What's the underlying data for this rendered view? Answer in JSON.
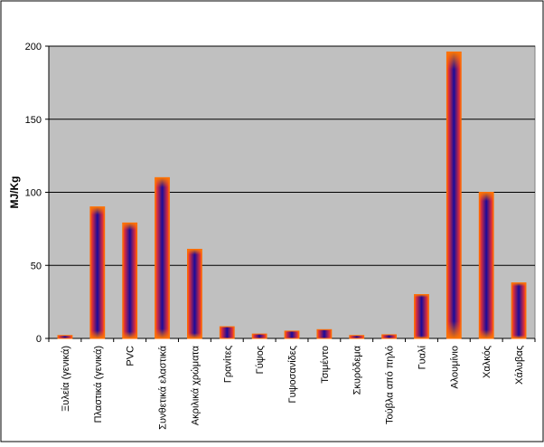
{
  "chart_data": {
    "type": "bar",
    "title": "",
    "xlabel": "",
    "ylabel": "MJ/Kg",
    "ylim": [
      0,
      200
    ],
    "yticks": [
      0,
      50,
      100,
      150,
      200
    ],
    "grid": true,
    "legend": "none",
    "categories": [
      "Ξυλεία (γενικά)",
      "Πλαστικά (γενικά)",
      "PVC",
      "Συνθετικά ελαστικά",
      "Ακριλικά χρώματα",
      "Γρανίτες",
      "Γύψος",
      "Γυψοσανίδες",
      "Τσιμέντο",
      "Σκυρόδεμα",
      "Τούβλα από πηλό",
      "Γυαλί",
      "Αλουμίνιο",
      "Χαλκός",
      "Χάλυβας"
    ],
    "values": [
      2,
      90,
      79,
      110,
      61,
      8,
      3,
      5,
      6,
      2,
      2.5,
      30,
      196,
      100,
      38
    ],
    "colors": {
      "plot_background": "#c0c0c0",
      "bar_edge": "#ff6600",
      "bar_center": "#1a0a9a",
      "gridline": "#000000"
    }
  }
}
